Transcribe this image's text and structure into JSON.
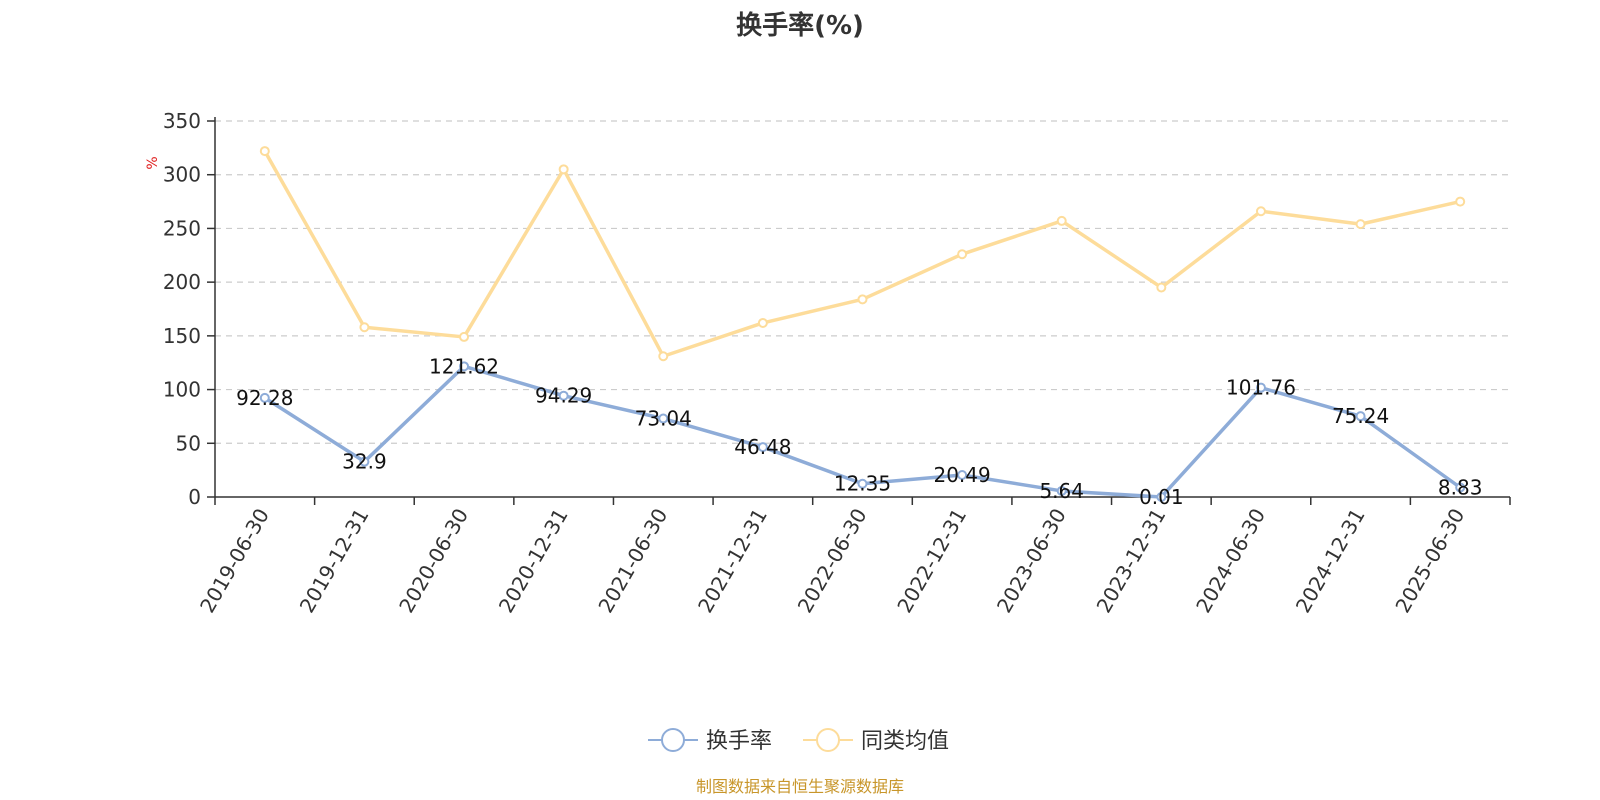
{
  "chart_data": {
    "type": "line",
    "title": "换手率(%)",
    "ylabel": "%",
    "ylim": [
      0,
      350
    ],
    "yticks": [
      0,
      50,
      100,
      150,
      200,
      250,
      300,
      350
    ],
    "grid": true,
    "legend_position": "bottom-center",
    "categories": [
      "2019-06-30",
      "2019-12-31",
      "2020-06-30",
      "2020-12-31",
      "2021-06-30",
      "2021-12-31",
      "2022-06-30",
      "2022-12-31",
      "2023-06-30",
      "2023-12-31",
      "2024-06-30",
      "2024-12-31",
      "2025-06-30"
    ],
    "series": [
      {
        "name": "换手率",
        "color": "#8eacd8",
        "show_labels": true,
        "values": [
          92.28,
          32.9,
          121.62,
          94.29,
          73.04,
          46.48,
          12.35,
          20.49,
          5.64,
          0.01,
          101.76,
          75.24,
          8.83
        ],
        "labels": [
          "92.28",
          "32.9",
          "121.62",
          "94.29",
          "73.04",
          "46.48",
          "12.35",
          "20.49",
          "5.64",
          "0.01",
          "101.76",
          "75.24",
          "8.83"
        ]
      },
      {
        "name": "同类均值",
        "color": "#fddc9a",
        "show_labels": false,
        "values": [
          322,
          158,
          149,
          305,
          131,
          162,
          184,
          226,
          257,
          195,
          266,
          254,
          275
        ]
      }
    ],
    "source_note": "制图数据来自恒生聚源数据库",
    "source_color": "#c8962a",
    "unit_color": "#e02020"
  }
}
